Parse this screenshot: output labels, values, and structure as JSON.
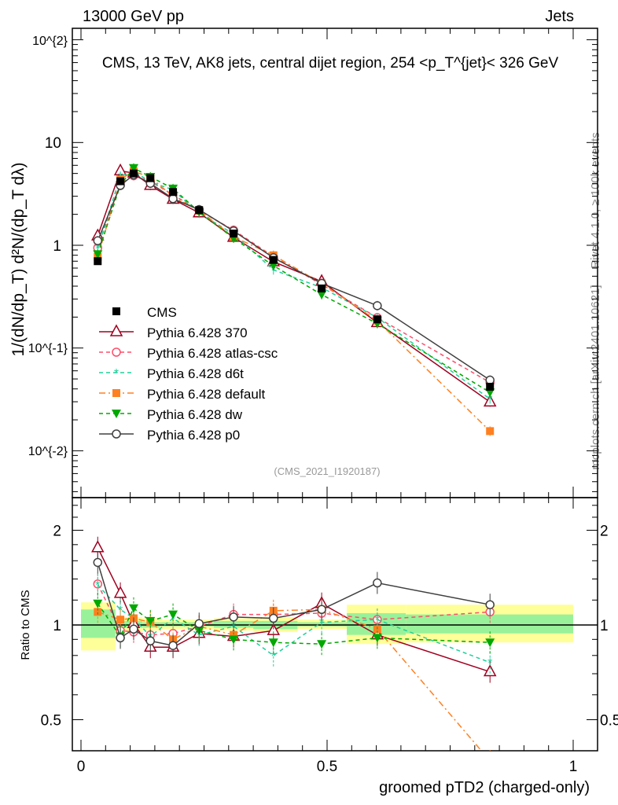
{
  "header": {
    "left": "13000 GeV pp",
    "right": "Jets"
  },
  "side": {
    "rivet": "Rivet 4.1.0, ≥ 100k events",
    "mcplots": "mcplots.cern.ch [arXiv:2401.10621]"
  },
  "chart_data": {
    "type": "line",
    "title": "CMS, 13 TeV, AK8 jets, central dijet region, 254 <p_T^{jet}< 326 GeV",
    "analysis_label": "(CMS_2021_I1920187)",
    "xlabel": "groomed pTD2 (charged-only)",
    "ylabel": "1/(dN/dp_T) d²N/(dp_T dλ)",
    "ratio_ylabel": "Ratio to CMS",
    "xlim": [
      0,
      1.0
    ],
    "ylim": [
      0.0035,
      140
    ],
    "yscale": "log",
    "ratio_ylim": [
      0.4,
      2.5
    ],
    "x_ticks": [
      "0",
      "0.5",
      "1"
    ],
    "y_ticks": [
      "10^{-2}",
      "10^{-1}",
      "1",
      "10",
      "10^{2}"
    ],
    "ratio_ticks": [
      "0.5",
      "1",
      "2"
    ],
    "x": [
      0.034,
      0.08,
      0.107,
      0.141,
      0.187,
      0.24,
      0.31,
      0.391,
      0.489,
      0.602,
      0.831
    ],
    "bin_edges": [
      0,
      0.07,
      0.09,
      0.125,
      0.16,
      0.21,
      0.27,
      0.35,
      0.44,
      0.54,
      0.66,
      1.0
    ],
    "data": {
      "name": "CMS",
      "values": [
        0.7,
        4.2,
        5.0,
        4.5,
        3.3,
        2.2,
        1.3,
        0.72,
        0.38,
        0.19,
        0.042
      ]
    },
    "ratio_band_total": [
      [
        0.83,
        1.18
      ],
      [
        0.95,
        1.06
      ],
      [
        0.95,
        1.06
      ],
      [
        0.96,
        1.05
      ],
      [
        0.97,
        1.04
      ],
      [
        0.97,
        1.04
      ],
      [
        0.96,
        1.05
      ],
      [
        0.95,
        1.06
      ],
      [
        0.97,
        1.04
      ],
      [
        0.87,
        1.16
      ],
      [
        0.88,
        1.16
      ]
    ],
    "ratio_band_stat": [
      [
        0.91,
        1.12
      ],
      [
        0.98,
        1.03
      ],
      [
        0.98,
        1.03
      ],
      [
        0.98,
        1.02
      ],
      [
        0.99,
        1.02
      ],
      [
        0.99,
        1.02
      ],
      [
        0.98,
        1.03
      ],
      [
        0.97,
        1.03
      ],
      [
        0.99,
        1.02
      ],
      [
        0.93,
        1.09
      ],
      [
        0.94,
        1.08
      ]
    ],
    "series": [
      {
        "name": "Pythia 6.428 370",
        "color": "#a00020",
        "marker": "triangle-open",
        "dash": "",
        "ratio": [
          1.76,
          1.26,
          1.01,
          0.85,
          0.85,
          0.94,
          0.92,
          0.96,
          1.17,
          0.93,
          0.71
        ]
      },
      {
        "name": "Pythia 6.428 atlas-csc",
        "color": "#ff4d6a",
        "marker": "circle-open",
        "dash": "5,4",
        "ratio": [
          1.35,
          0.96,
          0.95,
          0.93,
          0.94,
          0.99,
          1.08,
          1.08,
          1.09,
          1.04,
          1.1
        ]
      },
      {
        "name": "Pythia 6.428 d6t",
        "color": "#1fcf9a",
        "marker": "star",
        "dash": "5,4",
        "ratio": [
          1.34,
          1.12,
          1.05,
          0.92,
          1.05,
          0.93,
          0.99,
          0.8,
          1.02,
          1.04,
          0.76
        ]
      },
      {
        "name": "Pythia 6.428 default",
        "color": "#ff8020",
        "marker": "square",
        "dash": "8,4,2,4",
        "ratio": [
          1.1,
          1.04,
          1.05,
          1.02,
          0.9,
          0.99,
          0.93,
          1.11,
          1.12,
          0.97,
          0.37
        ]
      },
      {
        "name": "Pythia 6.428 dw",
        "color": "#00a800",
        "marker": "triangle-down",
        "dash": "5,4",
        "ratio": [
          1.17,
          0.92,
          1.13,
          1.03,
          1.08,
          0.96,
          0.9,
          0.88,
          0.87,
          0.91,
          0.88
        ]
      },
      {
        "name": "Pythia 6.428 p0",
        "color": "#404040",
        "marker": "circle-open",
        "dash": "",
        "ratio": [
          1.58,
          0.91,
          0.97,
          0.89,
          0.86,
          1.01,
          1.06,
          1.05,
          1.12,
          1.36,
          1.16
        ]
      }
    ]
  }
}
